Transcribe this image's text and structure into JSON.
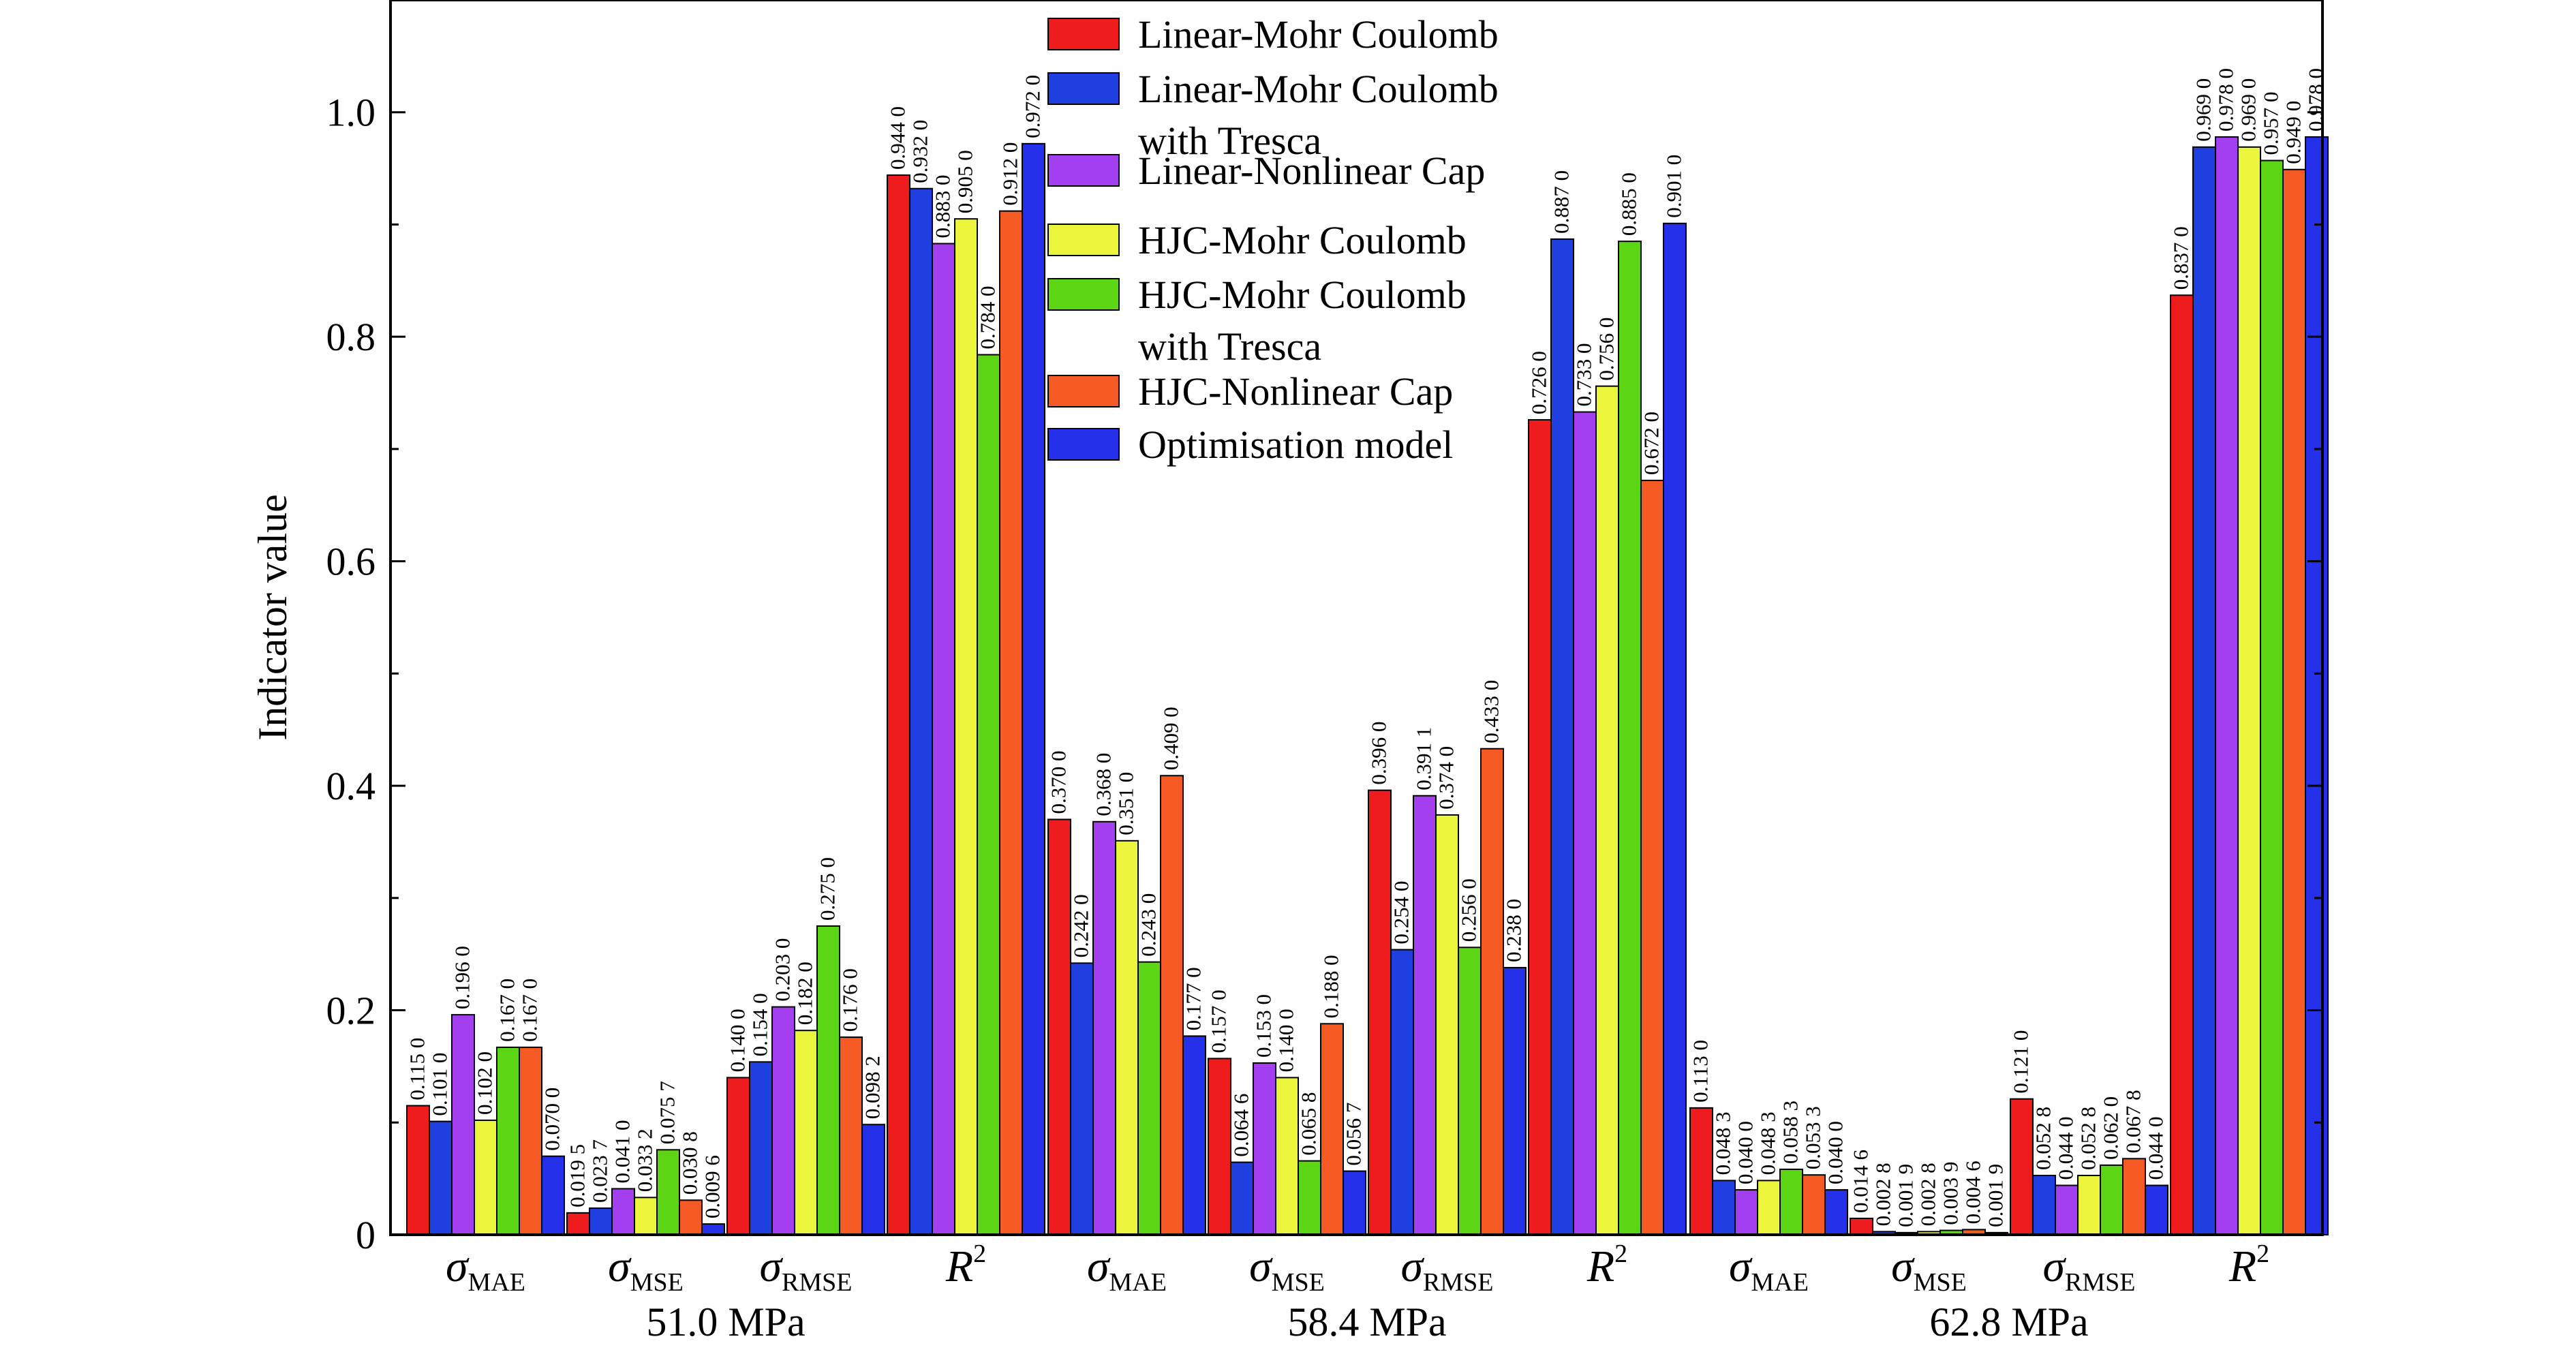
{
  "chart_data": {
    "type": "bar",
    "ylabel": "Indicator value",
    "ylim": [
      0,
      1.1
    ],
    "yticks": [
      "0",
      "0.2",
      "0.4",
      "0.6",
      "0.8",
      "1.0"
    ],
    "grid": false,
    "legend_position": "top-center",
    "legend": [
      {
        "name": "Linear-Mohr Coulomb",
        "color": "#ee1c1c"
      },
      {
        "name": "Linear-Mohr Coulomb\nwith Tresca",
        "color": "#1f3fe0"
      },
      {
        "name": "Linear-Nonlinear Cap",
        "color": "#a43ff0"
      },
      {
        "name": "HJC-Mohr Coulomb",
        "color": "#eaf53c"
      },
      {
        "name": "HJC-Mohr Coulomb\nwith Tresca",
        "color": "#5cd614"
      },
      {
        "name": "HJC-Nonlinear Cap",
        "color": "#f65a24"
      },
      {
        "name": "Optimisation model",
        "color": "#2430ea"
      }
    ],
    "metric_labels": [
      {
        "symbol": "σ",
        "sub": "MAE"
      },
      {
        "symbol": "σ",
        "sub": "MSE"
      },
      {
        "symbol": "σ",
        "sub": "RMSE"
      },
      {
        "symbol": "R",
        "sup": "2"
      }
    ],
    "groups": [
      {
        "label": "51.0 MPa",
        "metrics": [
          {
            "values": [
              0.115,
              0.101,
              0.196,
              0.102,
              0.167,
              0.167,
              0.07
            ],
            "labels": [
              "0.115 0",
              "0.101 0",
              "0.196 0",
              "0.102 0",
              "0.167 0",
              "0.167 0",
              "0.070 0"
            ]
          },
          {
            "values": [
              0.0195,
              0.0237,
              0.041,
              0.0332,
              0.0757,
              0.0308,
              0.0096
            ],
            "labels": [
              "0.019 5",
              "0.023 7",
              "0.041 0",
              "0.033 2",
              "0.075 7",
              "0.030 8",
              "0.009 6"
            ]
          },
          {
            "values": [
              0.14,
              0.154,
              0.203,
              0.182,
              0.275,
              0.176,
              0.0982
            ],
            "labels": [
              "0.140 0",
              "0.154 0",
              "0.203 0",
              "0.182 0",
              "0.275 0",
              "0.176 0",
              "0.098 2"
            ]
          },
          {
            "values": [
              0.944,
              0.932,
              0.883,
              0.905,
              0.784,
              0.912,
              0.972
            ],
            "labels": [
              "0.944 0",
              "0.932 0",
              "0.883 0",
              "0.905 0",
              "0.784 0",
              "0.912 0",
              "0.972 0"
            ]
          }
        ]
      },
      {
        "label": "58.4 MPa",
        "metrics": [
          {
            "values": [
              0.37,
              0.242,
              0.368,
              0.351,
              0.243,
              0.409,
              0.177
            ],
            "labels": [
              "0.370 0",
              "0.242 0",
              "0.368 0",
              "0.351 0",
              "0.243 0",
              "0.409 0",
              "0.177 0"
            ]
          },
          {
            "values": [
              0.157,
              0.0646,
              0.153,
              0.14,
              0.0658,
              0.188,
              0.0567
            ],
            "labels": [
              "0.157 0",
              "0.064 6",
              "0.153 0",
              "0.140 0",
              "0.065 8",
              "0.188 0",
              "0.056 7"
            ]
          },
          {
            "values": [
              0.396,
              0.254,
              0.3911,
              0.374,
              0.256,
              0.433,
              0.238
            ],
            "labels": [
              "0.396 0",
              "0.254 0",
              "0.391 1",
              "0.374 0",
              "0.256 0",
              "0.433 0",
              "0.238 0"
            ]
          },
          {
            "values": [
              0.726,
              0.887,
              0.733,
              0.756,
              0.885,
              0.672,
              0.901
            ],
            "labels": [
              "0.726 0",
              "0.887 0",
              "0.733 0",
              "0.756 0",
              "0.885 0",
              "0.672 0",
              "0.901 0"
            ]
          }
        ]
      },
      {
        "label": "62.8 MPa",
        "metrics": [
          {
            "values": [
              0.113,
              0.0483,
              0.04,
              0.0483,
              0.0583,
              0.0533,
              0.04
            ],
            "labels": [
              "0.113 0",
              "0.048 3",
              "0.040 0",
              "0.048 3",
              "0.058 3",
              "0.053 3",
              "0.040 0"
            ]
          },
          {
            "values": [
              0.0146,
              0.0028,
              0.0019,
              0.0028,
              0.0039,
              0.0046,
              0.0019
            ],
            "labels": [
              "0.014 6",
              "0.002 8",
              "0.001 9",
              "0.002 8",
              "0.003 9",
              "0.004 6",
              "0.001 9"
            ]
          },
          {
            "values": [
              0.121,
              0.0528,
              0.044,
              0.0528,
              0.062,
              0.0678,
              0.044
            ],
            "labels": [
              "0.121 0",
              "0.052 8",
              "0.044 0",
              "0.052 8",
              "0.062 0",
              "0.067 8",
              "0.044 0"
            ]
          },
          {
            "values": [
              0.837,
              0.969,
              0.978,
              0.969,
              0.957,
              0.949,
              0.978
            ],
            "labels": [
              "0.837 0",
              "0.969 0",
              "0.978 0",
              "0.969 0",
              "0.957 0",
              "0.949 0",
              "0.978 0"
            ]
          }
        ]
      }
    ]
  }
}
